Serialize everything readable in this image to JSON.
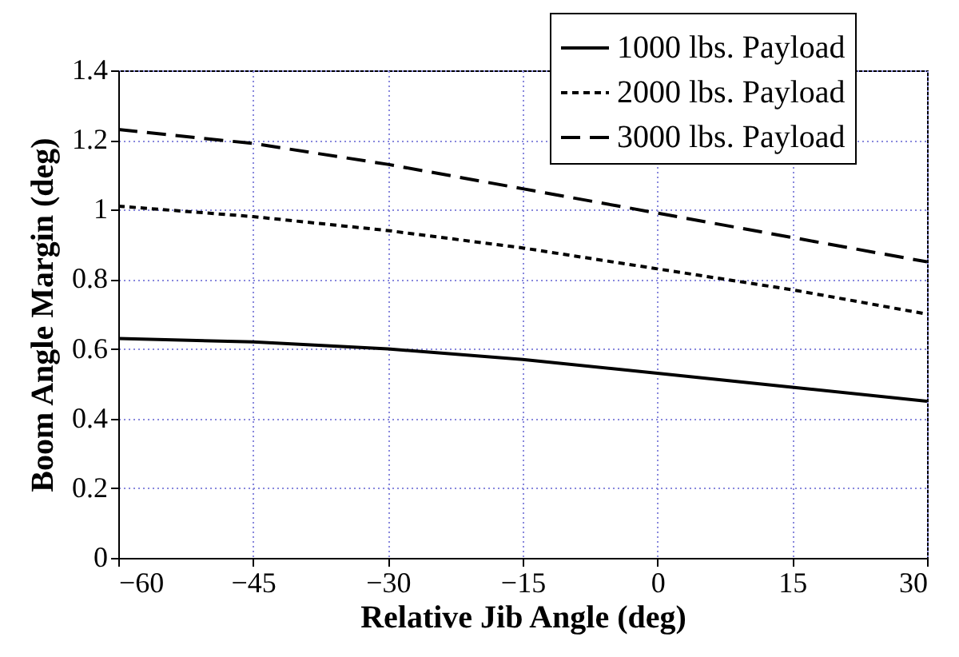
{
  "chart_data": {
    "type": "line",
    "xlabel": "Relative Jib Angle (deg)",
    "ylabel": "Boom Angle Margin (deg)",
    "x": [
      -60,
      -45,
      -30,
      -15,
      0,
      15,
      30
    ],
    "series": [
      {
        "name": "1000 lbs. Payload",
        "color": "#000000",
        "line_style": "solid",
        "values": [
          0.63,
          0.62,
          0.6,
          0.57,
          0.53,
          0.49,
          0.45
        ]
      },
      {
        "name": "2000 lbs. Payload",
        "color": "#000000",
        "line_style": "dotted",
        "values": [
          1.01,
          0.98,
          0.94,
          0.89,
          0.83,
          0.77,
          0.7
        ]
      },
      {
        "name": "3000 lbs. Payload",
        "color": "#000000",
        "line_style": "dashed",
        "values": [
          1.23,
          1.19,
          1.13,
          1.06,
          0.99,
          0.92,
          0.85
        ]
      }
    ],
    "xlim": [
      -60,
      30
    ],
    "xticks": [
      -60,
      -45,
      -30,
      -15,
      0,
      15,
      30
    ],
    "ylim": [
      0,
      1.4
    ],
    "yticks": [
      0,
      0.2,
      0.4,
      0.6,
      0.8,
      1,
      1.2,
      1.4
    ],
    "grid": true,
    "legend": "top right",
    "marker": "none"
  }
}
